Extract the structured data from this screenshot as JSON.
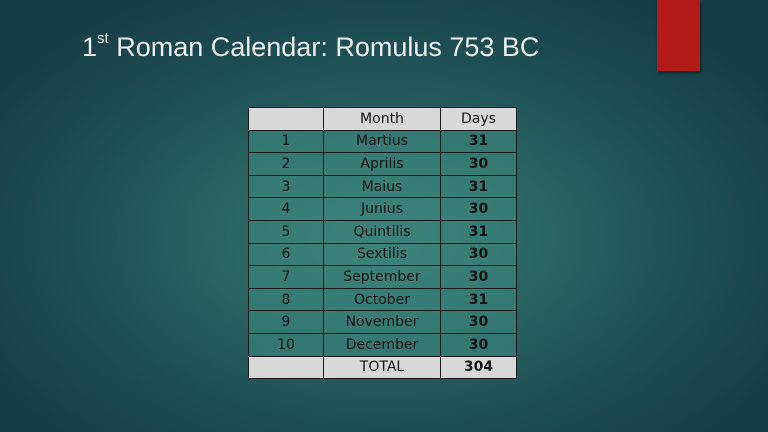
{
  "slide": {
    "title_prefix": "1",
    "title_sup": "st",
    "title_rest": " Roman Calendar: Romulus 753 BC",
    "accent_color": "#b31b1b"
  },
  "table": {
    "headers": [
      "",
      "Month",
      "Days"
    ],
    "rows": [
      {
        "n": "1",
        "month": "Martius",
        "days": "31"
      },
      {
        "n": "2",
        "month": "Aprilis",
        "days": "30"
      },
      {
        "n": "3",
        "month": "Maius",
        "days": "31"
      },
      {
        "n": "4",
        "month": "Junius",
        "days": "30"
      },
      {
        "n": "5",
        "month": "Quintilis",
        "days": "31"
      },
      {
        "n": "6",
        "month": "Sextilis",
        "days": "30"
      },
      {
        "n": "7",
        "month": "September",
        "days": "30"
      },
      {
        "n": "8",
        "month": "October",
        "days": "31"
      },
      {
        "n": "9",
        "month": "November",
        "days": "30"
      },
      {
        "n": "10",
        "month": "December",
        "days": "30"
      }
    ],
    "total": {
      "label": "TOTAL",
      "days": "304"
    }
  }
}
